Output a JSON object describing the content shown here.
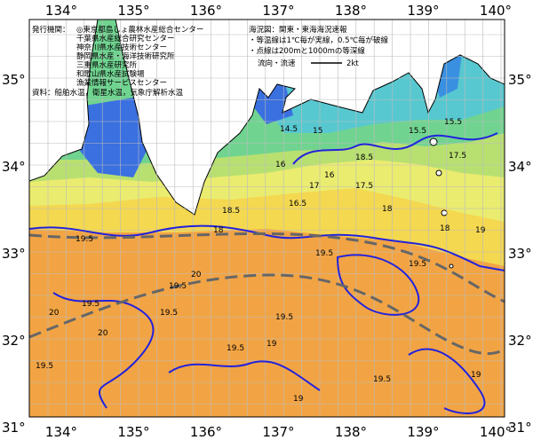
{
  "header": {
    "agencies_label": "発行機関：",
    "agencies": [
      "◎東京都島しょ農林水産総合センター",
      "千葉県水産総合研究センター",
      "神奈川県水産技術センター",
      "静岡県水産・海洋技術研究所",
      "三重県水産研究所",
      "和歌山県水産試験場",
      "漁業情報サービスセンター"
    ],
    "source": "資料：船舶水温，衛星水温，気象庁解析水温",
    "map_name": "海況図：関東・東海海況速報",
    "notes": [
      "・等温線は1℃毎が実線，0.5℃毎が破線",
      "・点線は200mと1000mの等深線"
    ],
    "current_label": "流向・流速",
    "current_scale": "2kt"
  },
  "axes": {
    "lon_top": [
      "134°",
      "135°",
      "136°",
      "137°",
      "138°",
      "139°",
      "140°"
    ],
    "lon_bottom": [
      "134°",
      "135°",
      "136°",
      "137°",
      "138°",
      "139°",
      "140°"
    ],
    "lat_left": [
      "35°",
      "34°",
      "33°",
      "32°",
      "31°"
    ],
    "lat_right": [
      "35°",
      "34°",
      "33°",
      "32°",
      "31°"
    ]
  },
  "contour_labels": [
    "14.5",
    "15",
    "15.5",
    "15.5",
    "16",
    "16",
    "16.5",
    "17",
    "17.5",
    "17.5",
    "18",
    "18",
    "18.5",
    "18.5",
    "18",
    "19",
    "19.5",
    "19.5",
    "19.5",
    "20",
    "19.5",
    "19.5",
    "20",
    "19.5",
    "19.5",
    "19",
    "20",
    "19.5",
    "19.5",
    "19",
    "19.5",
    "19"
  ]
}
